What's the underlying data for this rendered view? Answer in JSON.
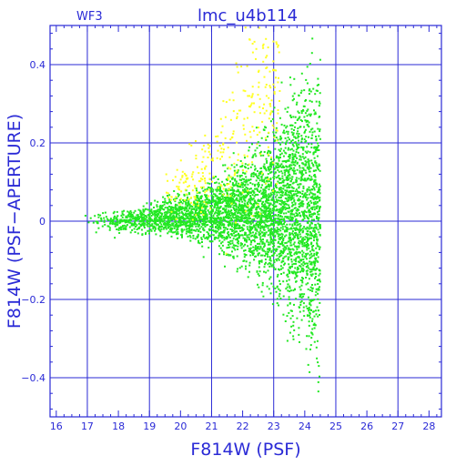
{
  "chart_data": {
    "type": "scatter",
    "title": "lmc_u4b114",
    "corner_label": "WF3",
    "xlabel": "F814W (PSF)",
    "ylabel": "F814W (PSF−APERTURE)",
    "xlim": [
      15.8,
      28.4
    ],
    "ylim": [
      -0.5,
      0.5
    ],
    "x_ticks": [
      16,
      17,
      18,
      19,
      20,
      21,
      22,
      23,
      24,
      25,
      26,
      27,
      28
    ],
    "y_ticks": [
      0.4,
      0.2,
      0,
      -0.2,
      -0.4
    ],
    "y_tick_labels": [
      "0.4",
      "0.2",
      "0",
      "−0.2",
      "−0.4"
    ],
    "grid": true,
    "colors": {
      "axis": "#2a2ad6",
      "grid": "#2a2ad6",
      "background": "#ffffff"
    },
    "series": [
      {
        "color": "#22e822",
        "envelope": [
          {
            "x": 16.8,
            "y_center": 0.0,
            "spread": 0.02
          },
          {
            "x": 18.0,
            "y_center": 0.0,
            "spread": 0.02
          },
          {
            "x": 19.0,
            "y_center": 0.005,
            "spread": 0.025
          },
          {
            "x": 20.0,
            "y_center": 0.01,
            "spread": 0.035
          },
          {
            "x": 21.0,
            "y_center": 0.02,
            "spread": 0.06
          },
          {
            "x": 22.0,
            "y_center": 0.02,
            "spread": 0.09
          },
          {
            "x": 23.0,
            "y_center": 0.03,
            "spread": 0.14
          },
          {
            "x": 23.5,
            "y_center": 0.04,
            "spread": 0.18
          },
          {
            "x": 24.0,
            "y_center": 0.03,
            "spread": 0.22
          },
          {
            "x": 24.4,
            "y_center": 0.0,
            "spread": 0.25
          }
        ],
        "cutoff_x": 24.5,
        "n_points": 4200
      },
      {
        "color": "#ffff22",
        "envelope": [
          {
            "x": 19.5,
            "y_center": 0.06,
            "spread": 0.04
          },
          {
            "x": 20.5,
            "y_center": 0.1,
            "spread": 0.07
          },
          {
            "x": 21.5,
            "y_center": 0.18,
            "spread": 0.12
          },
          {
            "x": 22.5,
            "y_center": 0.28,
            "spread": 0.16
          },
          {
            "x": 23.2,
            "y_center": 0.35,
            "spread": 0.14
          }
        ],
        "n_points": 320
      }
    ]
  }
}
